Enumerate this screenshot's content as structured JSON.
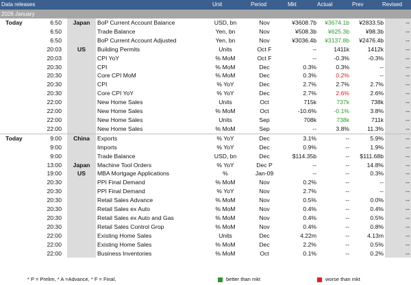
{
  "header": {
    "title": "Data releases",
    "columns": {
      "unit": "Unit",
      "period": "Period",
      "mkt": "Mkt",
      "actual": "Actual",
      "prev": "Prev",
      "revised": "Revised"
    }
  },
  "subheader": {
    "label": "2026 January"
  },
  "rows": [
    {
      "day": "Today",
      "time": "6:50",
      "country": "Japan",
      "event": "BoP Current Account Balance",
      "unit": "USD, bn",
      "period": "Nov",
      "mkt": "¥3608.7b",
      "actual": "¥3674.1b",
      "actual_status": "better",
      "prev": "¥2833.5b",
      "revised": "--"
    },
    {
      "day": "",
      "time": "6:50",
      "country": "",
      "event": "Trade Balance",
      "unit": "Yen, bn",
      "period": "Nov",
      "mkt": "¥508.3b",
      "actual": "¥625.3b",
      "actual_status": "better",
      "prev": "¥98.3b",
      "revised": "--"
    },
    {
      "day": "",
      "time": "6:50",
      "country": "",
      "event": "BoP Current Account Adjusted",
      "unit": "Yen, bn",
      "period": "Nov",
      "mkt": "¥3036.4b",
      "actual": "¥3137.8b",
      "actual_status": "better",
      "prev": "¥2476.4b",
      "revised": "--"
    },
    {
      "day": "",
      "time": "20:03",
      "country": "US",
      "event": "Building Permits",
      "unit": "Units",
      "period": "Oct F",
      "mkt": "--",
      "actual": "1411k",
      "actual_status": "",
      "prev": "1412k",
      "revised": "--"
    },
    {
      "day": "",
      "time": "20:03",
      "country": "",
      "event": "CPI YoY",
      "unit": "% MoM",
      "period": "Oct F",
      "mkt": "--",
      "actual": "-0.3%",
      "actual_status": "",
      "prev": "-0.3%",
      "revised": "--"
    },
    {
      "day": "",
      "time": "20:30",
      "country": "",
      "event": "CPI",
      "unit": "% MoM",
      "period": "Dec",
      "mkt": "0.3%",
      "actual": "0.3%",
      "actual_status": "",
      "prev": "--",
      "revised": "--"
    },
    {
      "day": "",
      "time": "20:30",
      "country": "",
      "event": "Core CPI MoM",
      "unit": "% MoM",
      "period": "Dec",
      "mkt": "0.3%",
      "actual": "0.2%",
      "actual_status": "worse",
      "prev": "--",
      "revised": "--"
    },
    {
      "day": "",
      "time": "20:30",
      "country": "",
      "event": "CPI",
      "unit": "% YoY",
      "period": "Dec",
      "mkt": "2.7%",
      "actual": "2.7%",
      "actual_status": "",
      "prev": "2.7%",
      "revised": "--"
    },
    {
      "day": "",
      "time": "20:30",
      "country": "",
      "event": "Core CPI YoY",
      "unit": "% YoY",
      "period": "Dec",
      "mkt": "2.7%",
      "actual": "2.6%",
      "actual_status": "worse",
      "prev": "2.6%",
      "revised": "--"
    },
    {
      "day": "",
      "time": "22:00",
      "country": "",
      "event": "New Home Sales",
      "unit": "Units",
      "period": "Oct",
      "mkt": "715k",
      "actual": "737k",
      "actual_status": "better",
      "prev": "738k",
      "revised": "--"
    },
    {
      "day": "",
      "time": "22:00",
      "country": "",
      "event": "New Home Sales",
      "unit": "% MoM",
      "period": "Oct",
      "mkt": "-10.6%",
      "actual": "-0.1%",
      "actual_status": "better",
      "prev": "3.8%",
      "revised": "--"
    },
    {
      "day": "",
      "time": "22:00",
      "country": "",
      "event": "New Home Sales",
      "unit": "Units",
      "period": "Sep",
      "mkt": "708k",
      "actual": "738k",
      "actual_status": "better",
      "prev": "711k",
      "revised": "--"
    },
    {
      "day": "",
      "time": "22:00",
      "country": "",
      "event": "New Home Sales",
      "unit": "% MoM",
      "period": "Sep",
      "mkt": "--",
      "actual": "3.8%",
      "actual_status": "",
      "prev": "11.3%",
      "revised": "--"
    },
    {
      "day": "Today",
      "time": "9:00",
      "country": "China",
      "event": "Exports",
      "unit": "% YoY",
      "period": "Dec",
      "mkt": "3.1%",
      "actual": "--",
      "actual_status": "",
      "prev": "5.9%",
      "revised": "--",
      "sep": true
    },
    {
      "day": "",
      "time": "9:00",
      "country": "",
      "event": "Imports",
      "unit": "% YoY",
      "period": "Dec",
      "mkt": "0.9%",
      "actual": "--",
      "actual_status": "",
      "prev": "1.9%",
      "revised": "--"
    },
    {
      "day": "",
      "time": "9:00",
      "country": "",
      "event": "Trade Balance",
      "unit": "USD, bn",
      "period": "Dec",
      "mkt": "$114.35b",
      "actual": "--",
      "actual_status": "",
      "prev": "$111.68b",
      "revised": "--"
    },
    {
      "day": "",
      "time": "13:00",
      "country": "Japan",
      "event": "Machine Tool Orders",
      "unit": "% YoY",
      "period": "Dec P",
      "mkt": "--",
      "actual": "--",
      "actual_status": "",
      "prev": "14.8%",
      "revised": "--"
    },
    {
      "day": "",
      "time": "19:00",
      "country": "US",
      "event": "MBA Mortgage Applications",
      "unit": "%",
      "period": "Jan-09",
      "mkt": "--",
      "actual": "--",
      "actual_status": "",
      "prev": "0.3%",
      "revised": "--"
    },
    {
      "day": "",
      "time": "20:30",
      "country": "",
      "event": "PPI Final Demand",
      "unit": "% MoM",
      "period": "Nov",
      "mkt": "0.2%",
      "actual": "--",
      "actual_status": "",
      "prev": "--",
      "revised": "--"
    },
    {
      "day": "",
      "time": "20:30",
      "country": "",
      "event": "PPI Final Demand",
      "unit": "% YoY",
      "period": "Nov",
      "mkt": "2.7%",
      "actual": "--",
      "actual_status": "",
      "prev": "--",
      "revised": "--"
    },
    {
      "day": "",
      "time": "20:30",
      "country": "",
      "event": "Retail Sales Advance",
      "unit": "% MoM",
      "period": "Nov",
      "mkt": "0.5%",
      "actual": "--",
      "actual_status": "",
      "prev": "0.0%",
      "revised": "--"
    },
    {
      "day": "",
      "time": "20:30",
      "country": "",
      "event": "Retail Sales ex Auto",
      "unit": "% MoM",
      "period": "Nov",
      "mkt": "0.4%",
      "actual": "--",
      "actual_status": "",
      "prev": "0.4%",
      "revised": "--"
    },
    {
      "day": "",
      "time": "20:30",
      "country": "",
      "event": "Retail Sales ex Auto and Gas",
      "unit": "% MoM",
      "period": "Nov",
      "mkt": "0.4%",
      "actual": "--",
      "actual_status": "",
      "prev": "0.5%",
      "revised": "--"
    },
    {
      "day": "",
      "time": "20:30",
      "country": "",
      "event": "Retail Sales Control Grop",
      "unit": "% MoM",
      "period": "Nov",
      "mkt": "0.4%",
      "actual": "--",
      "actual_status": "",
      "prev": "0.8%",
      "revised": "--"
    },
    {
      "day": "",
      "time": "22:00",
      "country": "",
      "event": "Existing Home Sales",
      "unit": "Units",
      "period": "Dec",
      "mkt": "4.22m",
      "actual": "--",
      "actual_status": "",
      "prev": "4.13m",
      "revised": "--"
    },
    {
      "day": "",
      "time": "22:00",
      "country": "",
      "event": "Existing Home Sales",
      "unit": "% MoM",
      "period": "Dec",
      "mkt": "2.2%",
      "actual": "--",
      "actual_status": "",
      "prev": "0.5%",
      "revised": "--"
    },
    {
      "day": "",
      "time": "22:00",
      "country": "",
      "event": "Business Inventories",
      "unit": "% MoM",
      "period": "Oct",
      "mkt": "0.1%",
      "actual": "--",
      "actual_status": "",
      "prev": "0.2%",
      "revised": "--"
    }
  ],
  "footer": {
    "note": "* P = Prelim, * A =Advance, * F = Final,",
    "better_label": "better than mkt",
    "worse_label": "worse than mkt",
    "better_color": "#2a9a2a",
    "worse_color": "#e02020"
  }
}
